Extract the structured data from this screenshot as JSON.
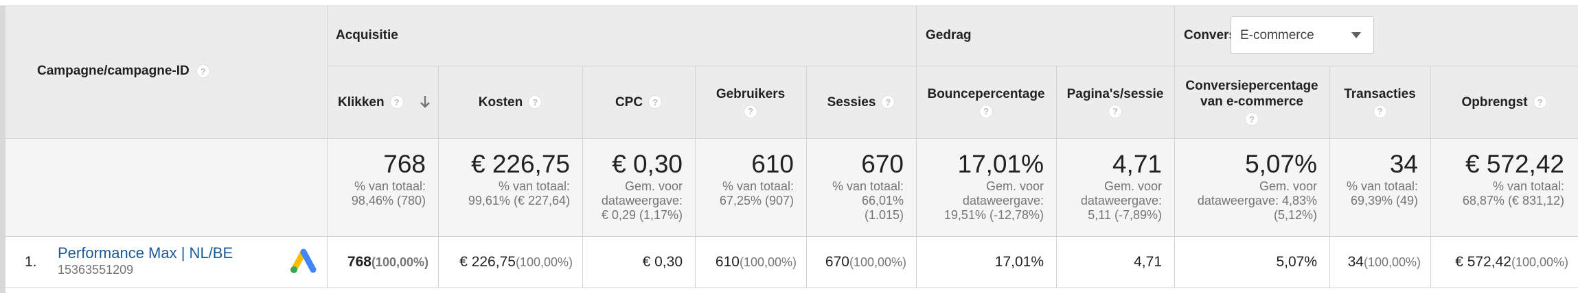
{
  "groups": {
    "acquisitie": "Acquisitie",
    "gedrag": "Gedrag",
    "conversies": "Conversies",
    "conversies_dropdown": "E-commerce"
  },
  "columns": {
    "campaign": "Campagne/campagne-ID",
    "klikken": "Klikken",
    "kosten": "Kosten",
    "cpc": "CPC",
    "gebruikers": "Gebruikers",
    "sessies": "Sessies",
    "bounce": "Bouncepercentage",
    "paginas": "Pagina's/sessie",
    "conv_line1": "Conversiepercentage",
    "conv_line2": "van e-commerce",
    "transacties": "Transacties",
    "opbrengst": "Opbrengst"
  },
  "totals": {
    "klikken": {
      "value": "768",
      "sub1": "% van totaal:",
      "sub2": "98,46% (780)"
    },
    "kosten": {
      "value": "€ 226,75",
      "sub1": "% van totaal:",
      "sub2": "99,61% (€ 227,64)"
    },
    "cpc": {
      "value": "€ 0,30",
      "sub1": "Gem. voor",
      "sub2": "dataweergave:",
      "sub3": "€ 0,29 (1,17%)"
    },
    "gebruikers": {
      "value": "610",
      "sub1": "% van totaal:",
      "sub2": "67,25% (907)"
    },
    "sessies": {
      "value": "670",
      "sub1": "% van totaal:",
      "sub2": "66,01%",
      "sub3": "(1.015)"
    },
    "bounce": {
      "value": "17,01%",
      "sub1": "Gem. voor",
      "sub2": "dataweergave:",
      "sub3": "19,51% (-12,78%)"
    },
    "paginas": {
      "value": "4,71",
      "sub1": "Gem. voor",
      "sub2": "dataweergave:",
      "sub3": "5,11 (-7,89%)"
    },
    "conv": {
      "value": "5,07%",
      "sub1": "Gem. voor",
      "sub2": "dataweergave: 4,83%",
      "sub3": "(5,12%)"
    },
    "transacties": {
      "value": "34",
      "sub1": "% van totaal:",
      "sub2": "69,39% (49)"
    },
    "opbrengst": {
      "value": "€ 572,42",
      "sub1": "% van totaal:",
      "sub2": "68,87% (€ 831,12)"
    }
  },
  "rows": [
    {
      "index": "1.",
      "campaign_name": "Performance Max | NL/BE",
      "campaign_id": "15363551209",
      "klikken": "768",
      "klikken_pct": "(100,00%)",
      "kosten": "€ 226,75",
      "kosten_pct": "(100,00%)",
      "cpc": "€ 0,30",
      "gebruikers": "610",
      "gebruikers_pct": "(100,00%)",
      "sessies": "670",
      "sessies_pct": "(100,00%)",
      "bounce": "17,01%",
      "paginas": "4,71",
      "conv": "5,07%",
      "transacties": "34",
      "transacties_pct": "(100,00%)",
      "opbrengst": "€ 572,42",
      "opbrengst_pct": "(100,00%)"
    }
  ],
  "icons": {
    "help": "?",
    "sort": "arrow-down-icon",
    "ads": "google-ads-icon"
  },
  "colors": {
    "header_bg": "#ececec",
    "totals_bg": "#f5f5f5",
    "link": "#1a5a96",
    "border": "#d4d4d4"
  }
}
